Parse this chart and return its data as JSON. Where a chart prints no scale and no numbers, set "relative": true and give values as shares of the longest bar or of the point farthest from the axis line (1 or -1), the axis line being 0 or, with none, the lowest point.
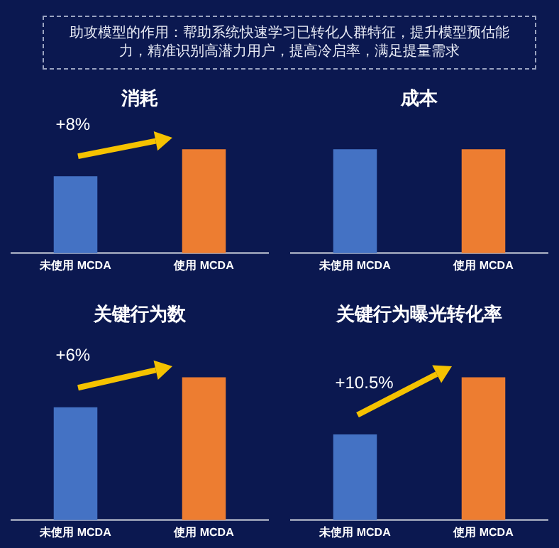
{
  "chart_data": [
    {
      "type": "other",
      "title": "助攻模型的作用：帮助系统快速学习已转化人群特征，提升模型预估能力，精准识别高潜力用户，提高冷启率，满足提量需求"
    },
    {
      "type": "bar",
      "title": "消耗",
      "categories": [
        "未使用 MCDA",
        "使用 MCDA"
      ],
      "values": [
        0.74,
        1
      ],
      "colors": [
        "#4472c4",
        "#ed7d31"
      ],
      "relative": true,
      "annotations": [
        "+8%"
      ]
    },
    {
      "type": "bar",
      "title": "成本",
      "categories": [
        "未使用 MCDA",
        "使用 MCDA"
      ],
      "values": [
        1,
        1
      ],
      "colors": [
        "#4472c4",
        "#ed7d31"
      ],
      "relative": true
    },
    {
      "type": "bar",
      "title": "关键行为数",
      "categories": [
        "未使用 MCDA",
        "使用 MCDA"
      ],
      "values": [
        0.79,
        1
      ],
      "colors": [
        "#4472c4",
        "#ed7d31"
      ],
      "relative": true,
      "annotations": [
        "+6%"
      ]
    },
    {
      "type": "bar",
      "title": "关键行为曝光转化率",
      "categories": [
        "未使用 MCDA",
        "使用 MCDA"
      ],
      "values": [
        0.6,
        1
      ],
      "colors": [
        "#4472c4",
        "#ed7d31"
      ],
      "relative": true,
      "annotations": [
        "+10.5%"
      ]
    }
  ]
}
